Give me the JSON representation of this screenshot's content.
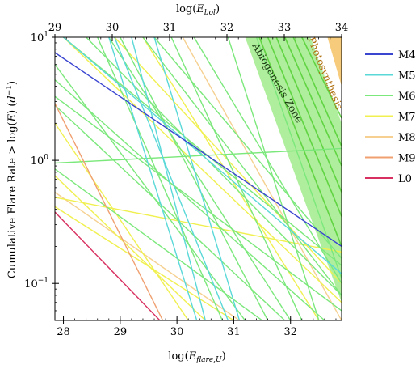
{
  "chart_data": {
    "type": "line",
    "xlabel": "log(E_flare,U)",
    "x_top_label": "log(E_bol)",
    "ylabel": "Cumulative Flare Rate > log(E) (d^-1)",
    "xlim": [
      27.85,
      32.9
    ],
    "ylim": [
      0.05,
      10
    ],
    "x_top_range": [
      29,
      34
    ],
    "y_scale": "log",
    "grid": false,
    "legend_placement": "right",
    "x_ticks": [
      "28",
      "29",
      "30",
      "31",
      "32"
    ],
    "x_top_ticks": [
      "29",
      "30",
      "31",
      "32",
      "33",
      "34"
    ],
    "y_ticks": [
      {
        "value": 10,
        "label": "10^1"
      },
      {
        "value": 1,
        "label": "10^0"
      },
      {
        "value": 0.1,
        "label": "10^-1"
      }
    ],
    "zones": [
      {
        "name": "Abiogenesis Zone",
        "color": "#6ee04a",
        "polygon": [
          [
            31.2,
            10
          ],
          [
            32.35,
            10
          ],
          [
            32.9,
            2.0
          ],
          [
            32.9,
            0.07
          ]
        ]
      },
      {
        "name": "Photosynthesis",
        "color": "#f0a010",
        "polygon": [
          [
            32.65,
            10
          ],
          [
            32.9,
            10
          ],
          [
            32.9,
            4.0
          ]
        ]
      }
    ],
    "series": [
      {
        "name": "M4",
        "color": "#3a45d0",
        "lines": [
          [
            [
              27.85,
              7.5
            ],
            [
              32.9,
              0.2
            ]
          ]
        ]
      },
      {
        "name": "M5",
        "color": "#5ad8d8",
        "lines": [
          [
            [
              28.8,
              10
            ],
            [
              30.35,
              0.05
            ]
          ],
          [
            [
              29.2,
              10
            ],
            [
              30.5,
              0.05
            ]
          ],
          [
            [
              29.6,
              10
            ],
            [
              31.1,
              0.05
            ]
          ],
          [
            [
              28.0,
              10
            ],
            [
              32.9,
              0.12
            ]
          ],
          [
            [
              28.9,
              10
            ],
            [
              30.9,
              0.05
            ]
          ]
        ]
      },
      {
        "name": "M6",
        "color": "#7be87b",
        "lines": [
          [
            [
              27.85,
              0.95
            ],
            [
              32.9,
              1.25
            ]
          ],
          [
            [
              27.85,
              0.85
            ],
            [
              31.5,
              0.05
            ]
          ],
          [
            [
              27.85,
              2.8
            ],
            [
              31.9,
              0.05
            ]
          ],
          [
            [
              27.85,
              4.5
            ],
            [
              32.6,
              0.05
            ]
          ],
          [
            [
              27.85,
              3.3
            ],
            [
              32.9,
              0.06
            ]
          ],
          [
            [
              28.0,
              10
            ],
            [
              32.9,
              0.14
            ]
          ],
          [
            [
              28.4,
              10
            ],
            [
              32.9,
              0.08
            ]
          ],
          [
            [
              28.8,
              10
            ],
            [
              32.0,
              0.05
            ]
          ],
          [
            [
              29.4,
              10
            ],
            [
              32.9,
              0.08
            ]
          ],
          [
            [
              29.9,
              10
            ],
            [
              32.2,
              0.05
            ]
          ],
          [
            [
              30.3,
              10
            ],
            [
              32.9,
              0.1
            ]
          ],
          [
            [
              30.9,
              10
            ],
            [
              32.5,
              0.05
            ]
          ],
          [
            [
              31.4,
              10
            ],
            [
              32.9,
              0.11
            ]
          ],
          [
            [
              27.85,
              6.0
            ],
            [
              31.2,
              0.05
            ]
          ],
          [
            [
              29.0,
              10
            ],
            [
              31.6,
              0.05
            ]
          ],
          [
            [
              28.6,
              10
            ],
            [
              30.8,
              0.05
            ]
          ],
          [
            [
              29.6,
              10
            ],
            [
              32.9,
              0.16
            ]
          ]
        ]
      },
      {
        "name": "M7",
        "color": "#f0f050",
        "lines": [
          [
            [
              27.85,
              0.5
            ],
            [
              32.9,
              0.18
            ]
          ],
          [
            [
              27.85,
              0.75
            ],
            [
              30.5,
              0.05
            ]
          ],
          [
            [
              27.85,
              0.42
            ],
            [
              31.0,
              0.05
            ]
          ],
          [
            [
              27.85,
              2.0
            ],
            [
              30.2,
              0.05
            ]
          ],
          [
            [
              28.0,
              10
            ],
            [
              32.9,
              0.07
            ]
          ],
          [
            [
              28.9,
              10
            ],
            [
              32.9,
              0.1
            ]
          ],
          [
            [
              29.4,
              10
            ],
            [
              32.5,
              0.05
            ]
          ]
        ]
      },
      {
        "name": "M8",
        "color": "#f5d090",
        "lines": [
          [
            [
              27.85,
              0.55
            ],
            [
              31.1,
              0.05
            ]
          ],
          [
            [
              30.1,
              10
            ],
            [
              32.9,
              0.05
            ]
          ]
        ]
      },
      {
        "name": "M9",
        "color": "#f0a070",
        "lines": [
          [
            [
              27.85,
              2.9
            ],
            [
              29.75,
              0.05
            ]
          ]
        ]
      },
      {
        "name": "L0",
        "color": "#d83060",
        "lines": [
          [
            [
              27.85,
              0.38
            ],
            [
              29.7,
              0.05
            ]
          ]
        ]
      }
    ]
  }
}
